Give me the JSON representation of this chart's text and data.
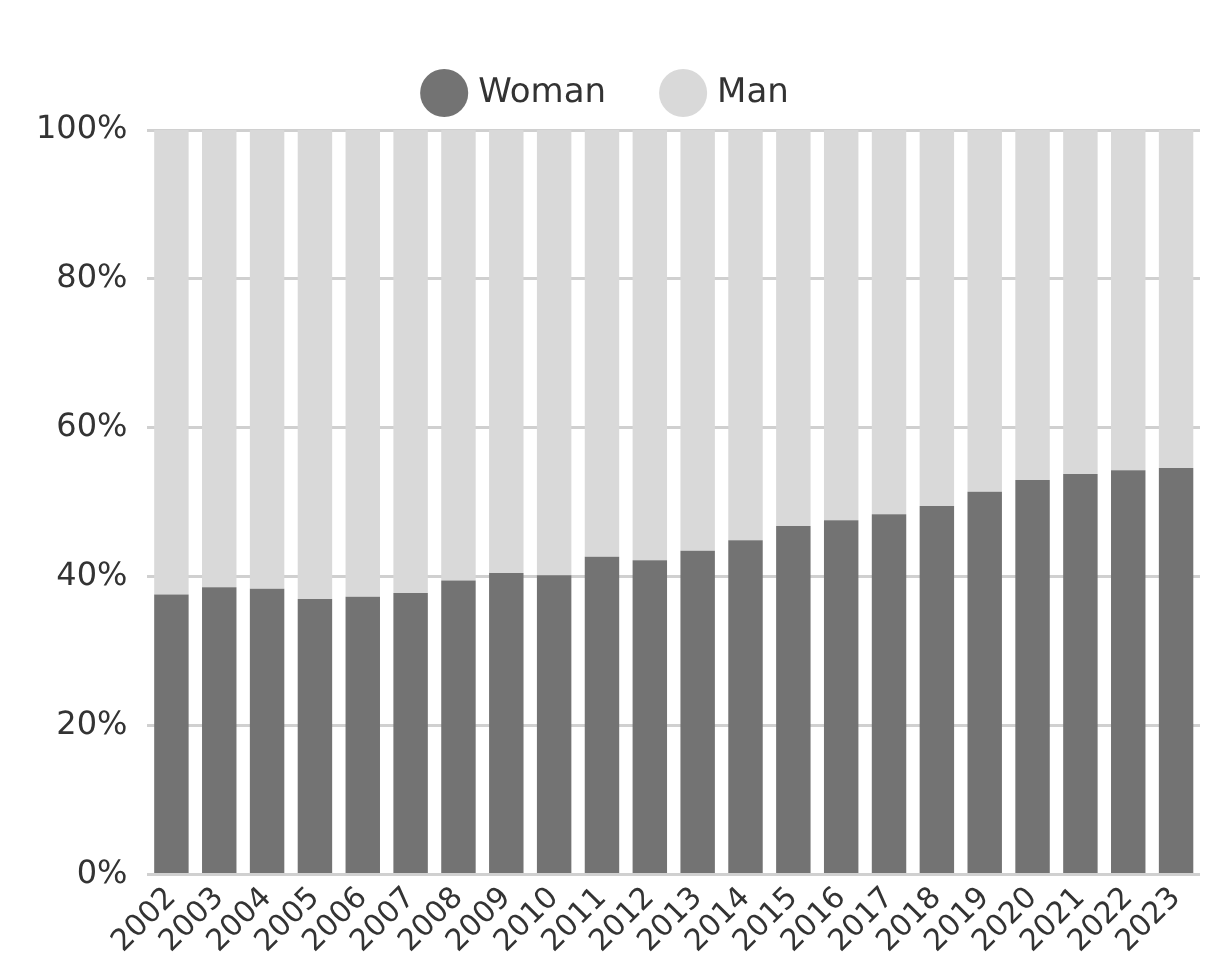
{
  "chart_data": {
    "type": "bar",
    "stacked": true,
    "categories": [
      "2002",
      "2003",
      "2004",
      "2005",
      "2006",
      "2007",
      "2008",
      "2009",
      "2010",
      "2011",
      "2012",
      "2013",
      "2014",
      "2015",
      "2016",
      "2017",
      "2018",
      "2019",
      "2020",
      "2021",
      "2022",
      "2023"
    ],
    "series": [
      {
        "name": "Woman",
        "color": "#737373",
        "values": [
          37.6,
          38.6,
          38.4,
          37.0,
          37.3,
          37.8,
          39.5,
          40.5,
          40.2,
          42.7,
          42.2,
          43.5,
          44.9,
          46.8,
          47.6,
          48.4,
          49.5,
          51.4,
          53.0,
          53.8,
          54.3,
          54.6
        ]
      },
      {
        "name": "Man",
        "color": "#d9d9d9",
        "values": [
          62.4,
          61.4,
          61.6,
          63.0,
          62.7,
          62.2,
          60.5,
          59.5,
          59.8,
          57.3,
          57.8,
          56.5,
          55.1,
          53.2,
          52.4,
          51.6,
          50.5,
          48.6,
          47.0,
          46.2,
          45.7,
          45.4
        ]
      }
    ],
    "ylim": [
      0,
      100
    ],
    "yticks": [
      {
        "value": 0,
        "label": "0%"
      },
      {
        "value": 20,
        "label": "20%"
      },
      {
        "value": 40,
        "label": "40%"
      },
      {
        "value": 60,
        "label": "60%"
      },
      {
        "value": 80,
        "label": "80%"
      },
      {
        "value": 100,
        "label": "100%"
      }
    ],
    "grid": "y",
    "legend": "top"
  }
}
